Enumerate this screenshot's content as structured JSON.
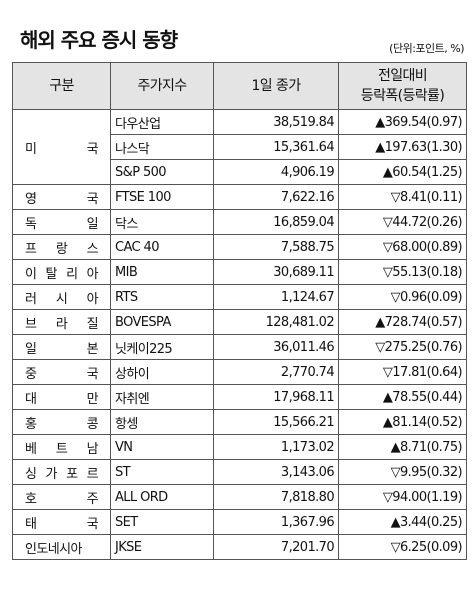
{
  "header": {
    "title": "해외 주요 증시 동향",
    "unit": "(단위:포인트, %)"
  },
  "table": {
    "columns": [
      "구분",
      "주가지수",
      "1일 종가",
      [
        "전일대비",
        "등락폭(등락률)"
      ]
    ],
    "groups": [
      {
        "country": "미 국",
        "rows": [
          [
            "다우산업",
            "38,519.84",
            "▲369.54(0.97)"
          ],
          [
            "나스닥",
            "15,361.64",
            "▲197.63(1.30)"
          ],
          [
            "S&P 500",
            "4,906.19",
            "▲60.54(1.25)"
          ]
        ]
      },
      {
        "country": "영 국",
        "rows": [
          [
            "FTSE 100",
            "7,622.16",
            "▽8.41(0.11)"
          ]
        ]
      },
      {
        "country": "독 일",
        "rows": [
          [
            "닥스",
            "16,859.04",
            "▽44.72(0.26)"
          ]
        ]
      },
      {
        "country": "프 랑 스",
        "rows": [
          [
            "CAC 40",
            "7,588.75",
            "▽68.00(0.89)"
          ]
        ]
      },
      {
        "country": "이 탈 리 아",
        "rows": [
          [
            "MIB",
            "30,689.11",
            "▽55.13(0.18)"
          ]
        ]
      },
      {
        "country": "러 시 아",
        "rows": [
          [
            "RTS",
            "1,124.67",
            "▽0.96(0.09)"
          ]
        ]
      },
      {
        "country": "브 라 질",
        "rows": [
          [
            "BOVESPA",
            "128,481.02",
            "▲728.74(0.57)"
          ]
        ]
      },
      {
        "country": "일 본",
        "rows": [
          [
            "닛케이225",
            "36,011.46",
            "▽275.25(0.76)"
          ]
        ]
      },
      {
        "country": "중 국",
        "rows": [
          [
            "상하이",
            "2,770.74",
            "▽17.81(0.64)"
          ]
        ]
      },
      {
        "country": "대 만",
        "rows": [
          [
            "자취엔",
            "17,968.11",
            "▲78.55(0.44)"
          ]
        ]
      },
      {
        "country": "홍 콩",
        "rows": [
          [
            "항셍",
            "15,566.21",
            "▲81.14(0.52)"
          ]
        ]
      },
      {
        "country": "베 트 남",
        "rows": [
          [
            "VN",
            "1,173.02",
            "▲8.71(0.75)"
          ]
        ]
      },
      {
        "country": "싱 가 포 르",
        "rows": [
          [
            "ST",
            "3,143.06",
            "▽9.95(0.32)"
          ]
        ]
      },
      {
        "country": "호 주",
        "rows": [
          [
            "ALL ORD",
            "7,818.80",
            "▽94.00(1.19)"
          ]
        ]
      },
      {
        "country": "태 국",
        "rows": [
          [
            "SET",
            "1,367.96",
            "▲3.44(0.25)"
          ]
        ]
      },
      {
        "country": "인도네시아",
        "rows": [
          [
            "JKSE",
            "7,201.70",
            "▽6.25(0.09)"
          ]
        ]
      }
    ]
  }
}
